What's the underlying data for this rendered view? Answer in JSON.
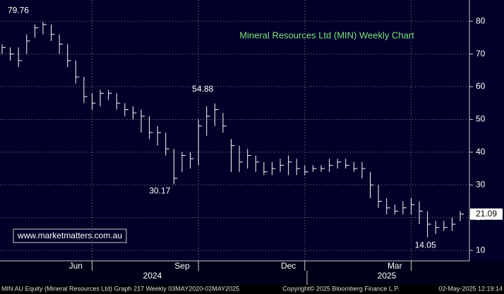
{
  "chart_data": {
    "type": "ohlc",
    "title": "Mineral Resources Ltd (MIN) Weekly Chart",
    "watermark": "www.marketmatters.com.au",
    "categories": [
      null,
      null,
      null,
      null,
      null,
      null,
      null,
      null,
      null,
      "Jun",
      null,
      null,
      null,
      null,
      null,
      null,
      null,
      null,
      null,
      null,
      null,
      null,
      "Sep",
      null,
      null,
      null,
      null,
      null,
      null,
      null,
      null,
      null,
      null,
      null,
      null,
      "Dec",
      null,
      null,
      null,
      null,
      null,
      null,
      null,
      null,
      null,
      null,
      null,
      null,
      "Mar",
      null,
      null,
      null,
      null,
      null,
      null,
      null,
      null
    ],
    "year_labels": [
      "2024",
      "2025"
    ],
    "close": [
      72,
      70,
      68,
      74,
      78,
      79,
      76,
      73,
      68,
      63,
      57,
      55,
      58,
      58,
      55,
      53,
      52,
      51,
      46,
      46,
      41,
      32,
      39,
      38,
      48,
      51,
      53,
      48,
      42,
      37,
      39,
      37,
      34,
      35,
      36,
      37,
      35,
      34,
      35,
      35,
      36,
      37,
      36,
      35,
      35,
      30,
      25,
      23,
      22,
      23,
      24,
      22,
      18,
      17,
      17,
      18,
      21.09
    ],
    "high": [
      73,
      72,
      72,
      76,
      79,
      79.76,
      79,
      76,
      73,
      68,
      63,
      58,
      59,
      59,
      58,
      55,
      54,
      53,
      51,
      48,
      46,
      41,
      40,
      40,
      50,
      54,
      54.88,
      52,
      44,
      42,
      41,
      39,
      37,
      37,
      38,
      39,
      38,
      36,
      36,
      36,
      38,
      38,
      38,
      37,
      37,
      34,
      30,
      26,
      24,
      25,
      26,
      25,
      22,
      19,
      19,
      20,
      22
    ],
    "low": [
      70,
      68,
      66,
      70,
      75,
      76,
      74,
      70,
      66,
      61,
      55,
      53,
      54,
      56,
      53,
      51,
      50,
      46,
      44,
      42,
      39,
      30.17,
      34,
      35,
      36,
      45,
      48,
      46,
      34,
      34,
      35,
      34,
      33,
      33,
      34,
      33,
      33,
      33,
      34,
      34,
      34,
      35,
      35,
      34,
      32,
      26,
      23,
      21,
      21,
      21,
      21,
      18,
      14.05,
      15,
      16,
      16,
      19
    ],
    "color": "#ffffff",
    "ylim": [
      6.8,
      86.5
    ],
    "yticks": [
      10,
      20,
      30,
      40,
      50,
      60,
      70,
      80
    ],
    "grid": true,
    "footer": {
      "left": "MIN AU Equity (Mineral Resources Ltd) Graph 217  Weekly 03MAY2020-02MAY2025",
      "center": "Copyright© 2025 Bloomberg Finance L.P.",
      "right": "02-May-2025 12:19:14"
    }
  }
}
